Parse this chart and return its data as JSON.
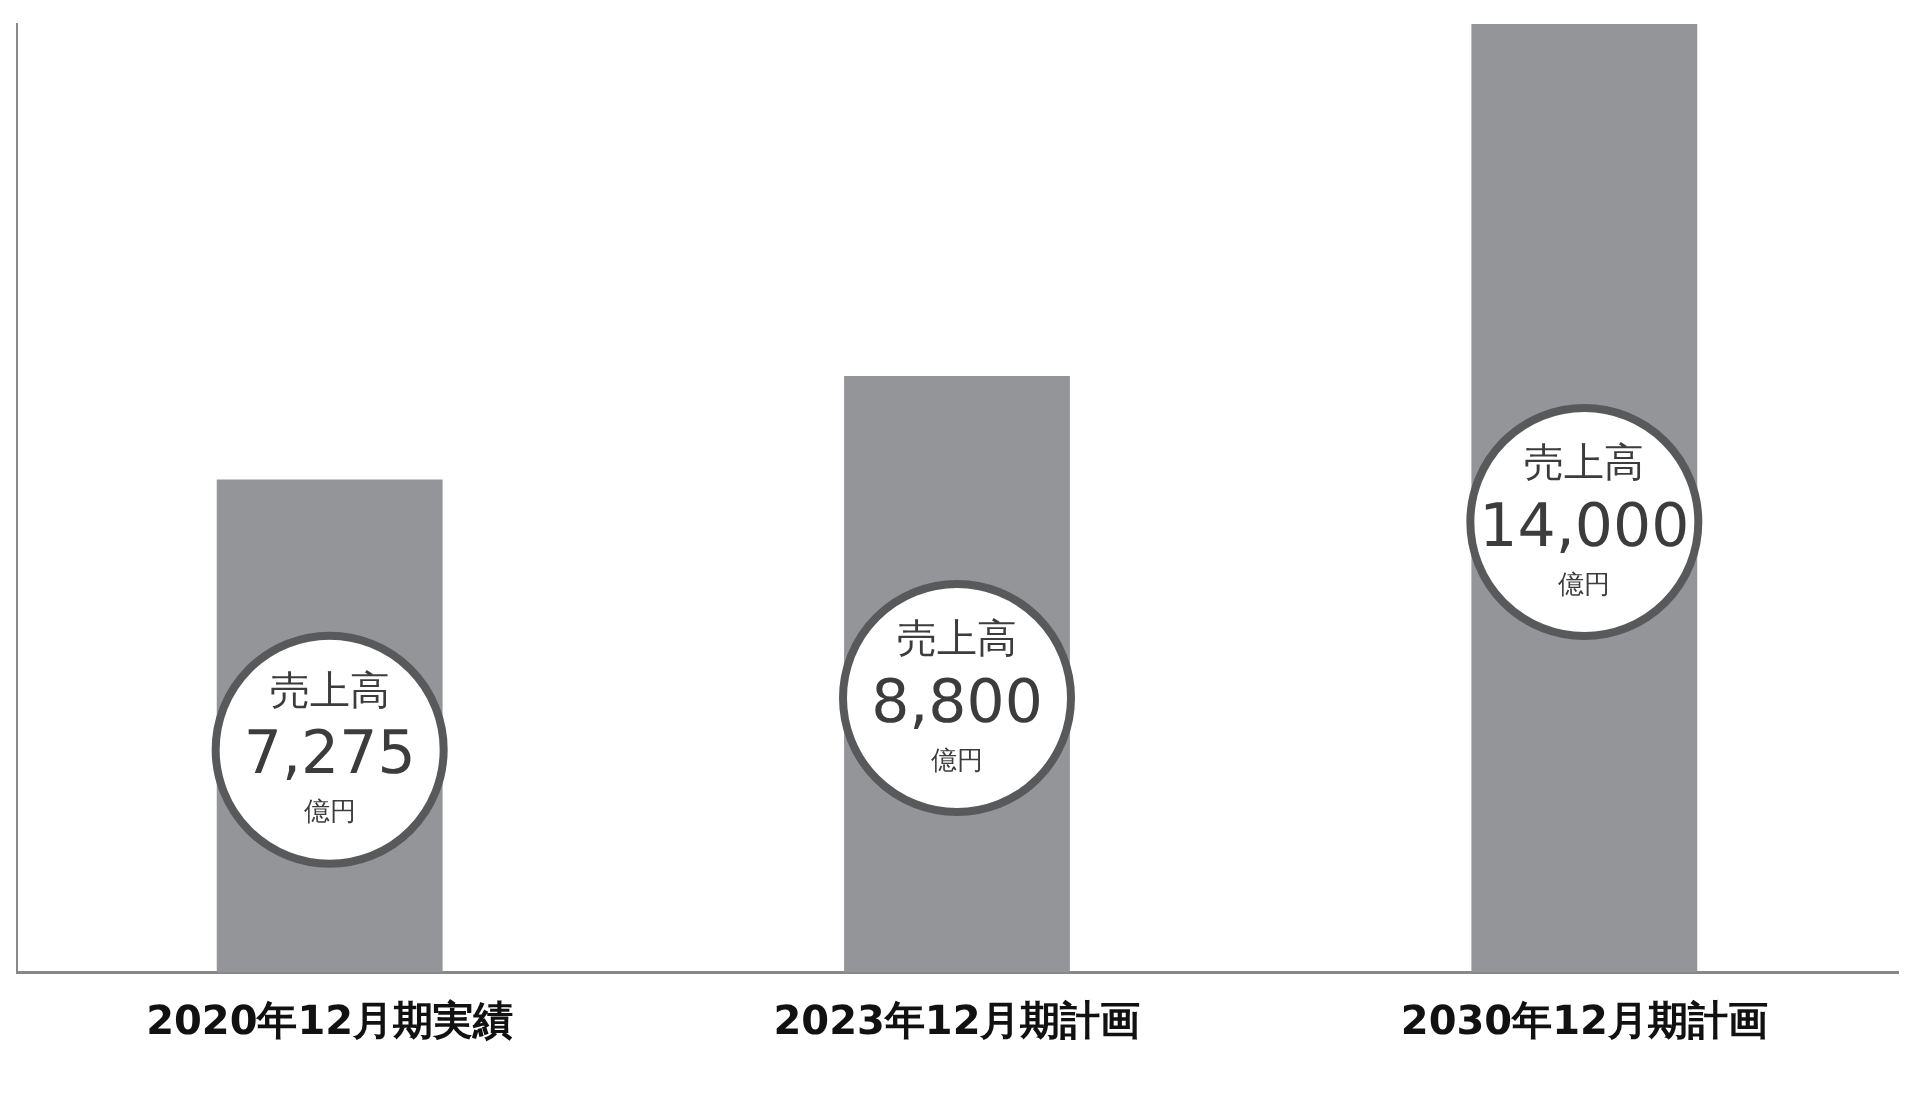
{
  "chart_data": {
    "type": "bar",
    "categories": [
      "2020年12月期実績",
      "2023年12月期計画",
      "2030年12月期計画"
    ],
    "values": [
      7275,
      8800,
      14000
    ],
    "value_labels": [
      "7,275",
      "8,800",
      "14,000"
    ],
    "color": "#939598",
    "ylim": [
      0,
      14000
    ],
    "tick_labels": "x",
    "grid": false,
    "legend": false,
    "annotations": [
      "売上高",
      "億円",
      "売上高",
      "億円",
      "売上高",
      "億円"
    ]
  }
}
